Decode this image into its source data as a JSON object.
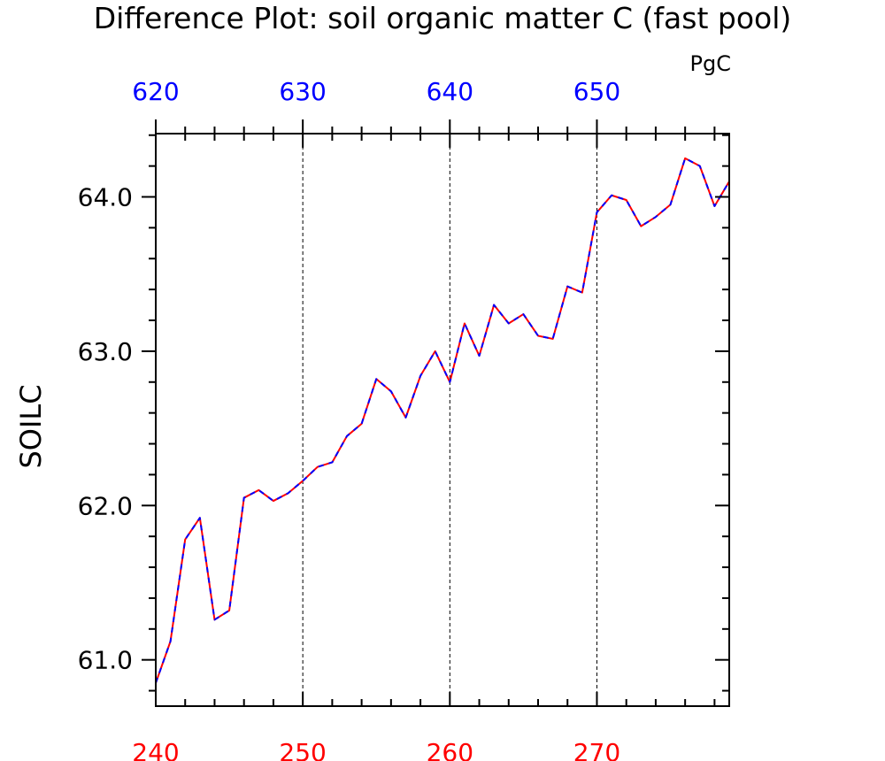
{
  "chart_data": {
    "type": "line",
    "title": "Difference Plot: soil organic matter C (fast pool)",
    "units": "PgC",
    "ylabel": "SOILC",
    "bottom_axis": {
      "range": [
        240,
        279
      ],
      "ticks": [
        240,
        250,
        260,
        270
      ],
      "tick_labels": [
        "240",
        "250",
        "260",
        "270"
      ],
      "color": "#ff0000"
    },
    "top_axis": {
      "range": [
        620,
        659
      ],
      "ticks": [
        620,
        630,
        640,
        650
      ],
      "tick_labels": [
        "620",
        "630",
        "640",
        "650"
      ],
      "color": "#0000ff"
    },
    "y_axis": {
      "range": [
        60.7,
        64.41
      ],
      "ticks": [
        61.0,
        62.0,
        63.0,
        64.0
      ],
      "tick_labels": [
        "61.0",
        "62.0",
        "63.0",
        "64.0"
      ]
    },
    "grid": "vertical dashed at major x ticks",
    "series": [
      {
        "axis": "bottom",
        "color": "#ff0000",
        "x": [
          240,
          241,
          242,
          243,
          244,
          245,
          246,
          247,
          248,
          249,
          250,
          251,
          252,
          253,
          254,
          255,
          256,
          257,
          258,
          259,
          260,
          261,
          262,
          263,
          264,
          265,
          266,
          267,
          268,
          269,
          270,
          271,
          272,
          273,
          274,
          275,
          276,
          277,
          278,
          279
        ],
        "values": [
          60.85,
          61.12,
          61.78,
          61.92,
          61.26,
          61.32,
          62.05,
          62.1,
          62.03,
          62.08,
          62.16,
          62.25,
          62.28,
          62.45,
          62.53,
          62.82,
          62.74,
          62.57,
          62.84,
          63.0,
          62.8,
          63.18,
          62.97,
          63.3,
          63.18,
          63.24,
          63.1,
          63.08,
          63.42,
          63.38,
          63.9,
          64.01,
          63.98,
          63.81,
          63.87,
          63.95,
          64.25,
          64.2,
          63.94,
          64.1
        ]
      },
      {
        "axis": "top",
        "color": "#0000ff",
        "x": [
          620,
          621,
          622,
          623,
          624,
          625,
          626,
          627,
          628,
          629,
          630,
          631,
          632,
          633,
          634,
          635,
          636,
          637,
          638,
          639,
          640,
          641,
          642,
          643,
          644,
          645,
          646,
          647,
          648,
          649,
          650,
          651,
          652,
          653,
          654,
          655,
          656,
          657,
          658,
          659
        ],
        "values": [
          60.85,
          61.12,
          61.78,
          61.92,
          61.26,
          61.32,
          62.05,
          62.1,
          62.03,
          62.08,
          62.16,
          62.25,
          62.28,
          62.45,
          62.53,
          62.82,
          62.74,
          62.57,
          62.84,
          63.0,
          62.8,
          63.18,
          62.97,
          63.3,
          63.18,
          63.24,
          63.1,
          63.08,
          63.42,
          63.38,
          63.9,
          64.01,
          63.98,
          63.81,
          63.87,
          63.95,
          64.25,
          64.2,
          63.94,
          64.1
        ]
      }
    ]
  }
}
